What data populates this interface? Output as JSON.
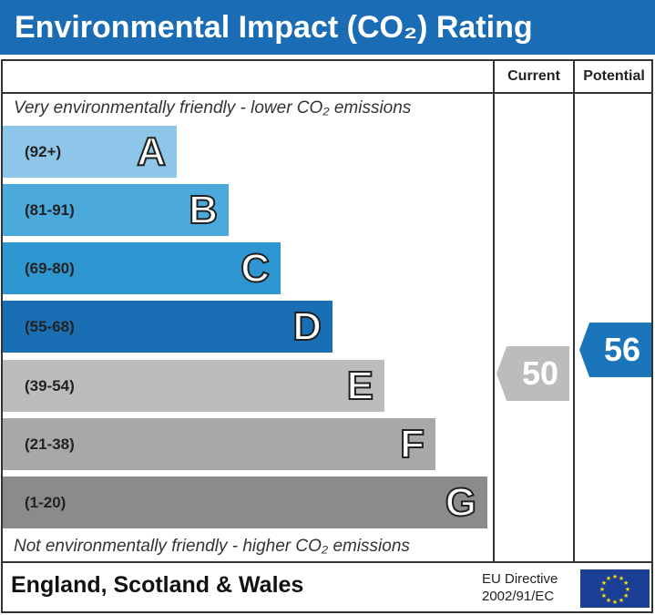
{
  "title": "Environmental Impact (CO₂) Rating",
  "columns": {
    "current": "Current",
    "potential": "Potential"
  },
  "top_note": "Very environmentally friendly - lower CO₂ emissions",
  "bottom_note": "Not environmentally friendly - higher CO₂ emissions",
  "chart_data": {
    "type": "bar",
    "bands": [
      {
        "letter": "A",
        "range": "(92+)",
        "color": "#8dc6e8"
      },
      {
        "letter": "B",
        "range": "(81-91)",
        "color": "#4ba9dc"
      },
      {
        "letter": "C",
        "range": "(69-80)",
        "color": "#2e96d1"
      },
      {
        "letter": "D",
        "range": "(55-68)",
        "color": "#1a6fb4"
      },
      {
        "letter": "E",
        "range": "(39-54)",
        "color": "#bdbcbb"
      },
      {
        "letter": "F",
        "range": "(21-38)",
        "color": "#a9a8a7"
      },
      {
        "letter": "G",
        "range": "(1-20)",
        "color": "#8c8b8a"
      }
    ],
    "current": {
      "value": "50",
      "band": "E",
      "color": "#bdbcbb"
    },
    "potential": {
      "value": "56",
      "band": "D",
      "color": "#1a75bb"
    }
  },
  "footer": {
    "region": "England, Scotland & Wales",
    "directive_line1": "EU Directive",
    "directive_line2": "2002/91/EC"
  }
}
